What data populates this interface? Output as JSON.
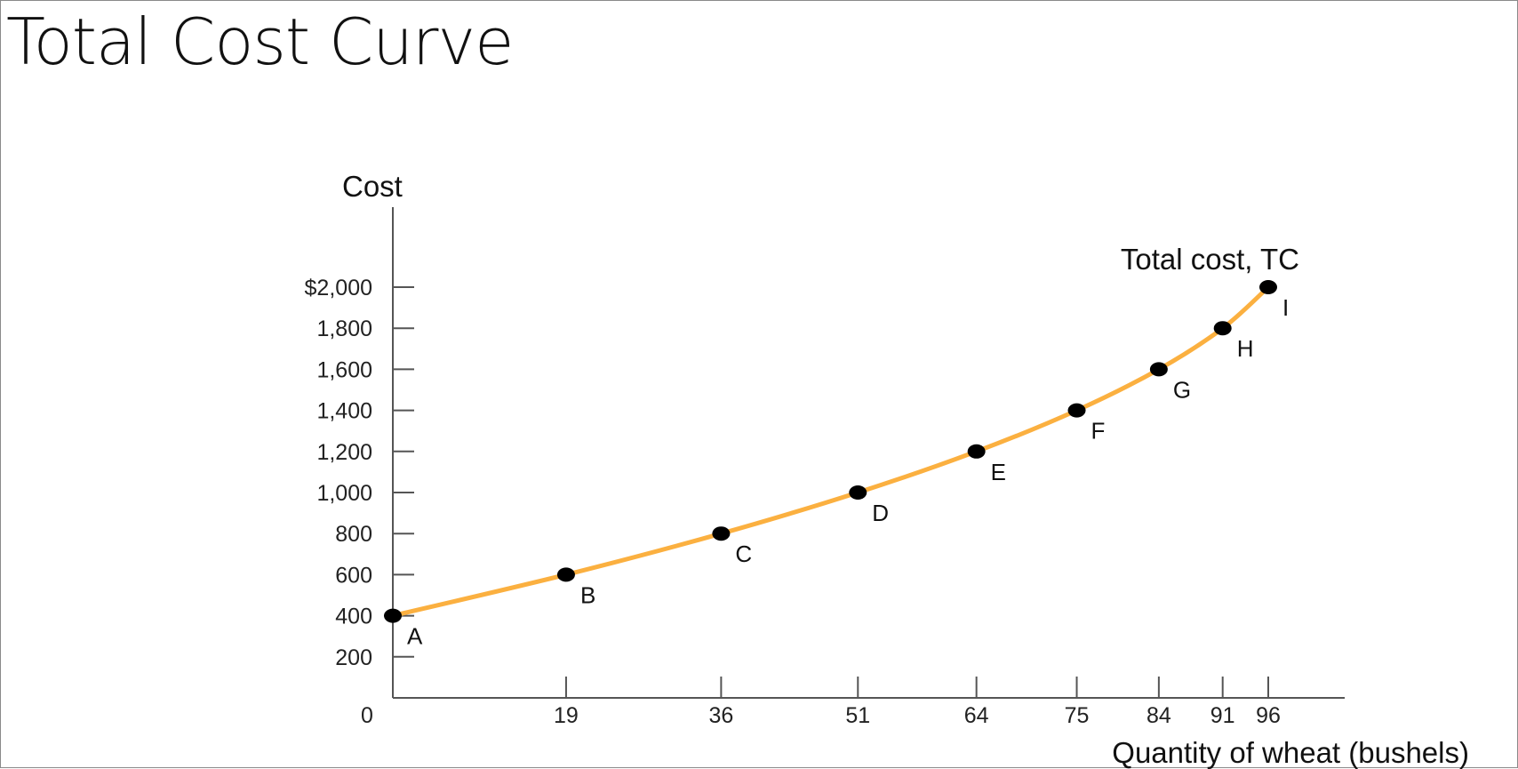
{
  "title": "Total Cost Curve",
  "chart_data": {
    "type": "line",
    "title": "Total Cost Curve",
    "xlabel": "Quantity of wheat (bushels)",
    "ylabel": "Cost",
    "series_label": "Total cost, TC",
    "x_ticks": [
      "0",
      "19",
      "36",
      "51",
      "64",
      "75",
      "84",
      "91",
      "96"
    ],
    "y_ticks": [
      "200",
      "400",
      "600",
      "800",
      "1,000",
      "1,200",
      "1,400",
      "1,600",
      "1,800",
      "$2,000"
    ],
    "xlim": [
      0,
      118
    ],
    "ylim": [
      0,
      2000
    ],
    "points": [
      {
        "label": "A",
        "x": 0,
        "y": 400
      },
      {
        "label": "B",
        "x": 19,
        "y": 600
      },
      {
        "label": "C",
        "x": 36,
        "y": 800
      },
      {
        "label": "D",
        "x": 51,
        "y": 1000
      },
      {
        "label": "E",
        "x": 64,
        "y": 1200
      },
      {
        "label": "F",
        "x": 75,
        "y": 1400
      },
      {
        "label": "G",
        "x": 84,
        "y": 1600
      },
      {
        "label": "H",
        "x": 91,
        "y": 1800
      },
      {
        "label": "I",
        "x": 96,
        "y": 2000
      }
    ],
    "line_color": "#FBB040",
    "point_color": "#000000",
    "grid": false,
    "legend": "none"
  }
}
